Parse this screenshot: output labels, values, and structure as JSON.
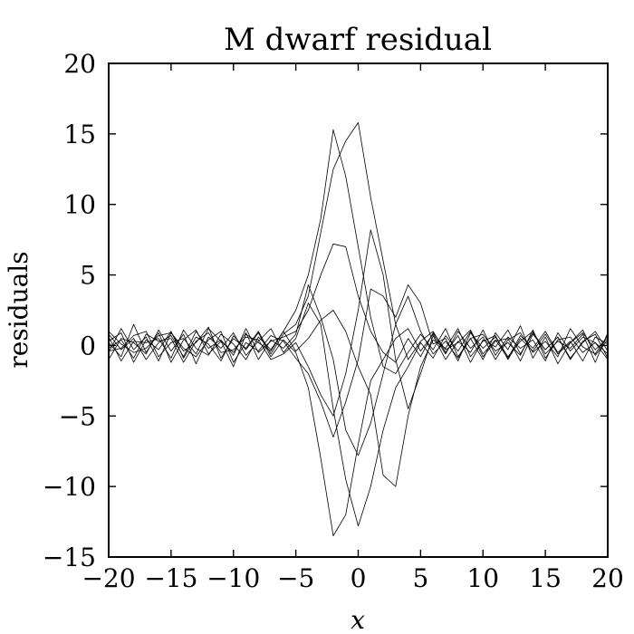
{
  "chart_data": {
    "type": "line",
    "title": "M dwarf residual",
    "xlabel": "x",
    "ylabel": "residuals",
    "xlim": [
      -20,
      20
    ],
    "ylim": [
      -15,
      20
    ],
    "xticks": [
      -20,
      -15,
      -10,
      -5,
      0,
      5,
      10,
      15,
      20
    ],
    "yticks": [
      -15,
      -10,
      -5,
      0,
      5,
      10,
      15,
      20
    ],
    "xtick_labels": [
      "−20",
      "−15",
      "−10",
      "−5",
      "0",
      "5",
      "10",
      "15",
      "20"
    ],
    "ytick_labels": [
      "−15",
      "−10",
      "−5",
      "0",
      "5",
      "10",
      "15",
      "20"
    ],
    "grid": false,
    "line_color": "#000000",
    "x": [
      -20,
      -19,
      -18,
      -17,
      -16,
      -15,
      -14,
      -13,
      -12,
      -11,
      -10,
      -9,
      -8,
      -7,
      -6,
      -5,
      -4,
      -3,
      -2,
      -1,
      0,
      1,
      2,
      3,
      4,
      5,
      6,
      7,
      8,
      9,
      10,
      11,
      12,
      13,
      14,
      15,
      16,
      17,
      18,
      19,
      20
    ],
    "series": [
      {
        "values": [
          0.2,
          -0.8,
          1.5,
          -0.5,
          0.9,
          -1.2,
          0.4,
          1.1,
          -0.6,
          0.3,
          -1.5,
          0.8,
          0.2,
          -0.4,
          1.0,
          2.5,
          5.0,
          9.0,
          15.3,
          12.0,
          7.0,
          2.0,
          -1.5,
          -2.0,
          -0.5,
          0.8,
          -0.3,
          1.2,
          -0.8,
          0.5,
          -1.0,
          0.9,
          -0.3,
          1.4,
          -0.9,
          0.6,
          -1.3,
          0.2,
          1.1,
          -0.7,
          0.4
        ]
      },
      {
        "values": [
          -0.5,
          1.2,
          -0.3,
          0.6,
          -1.1,
          0.9,
          -0.4,
          0.2,
          1.3,
          -0.9,
          0.5,
          -0.2,
          1.0,
          -0.6,
          0.8,
          1.5,
          3.5,
          8.0,
          12.5,
          14.5,
          15.8,
          10.5,
          6.0,
          1.5,
          -1.0,
          0.3,
          1.0,
          -0.5,
          0.7,
          -1.2,
          0.4,
          -0.1,
          1.1,
          -0.6,
          0.9,
          -0.3,
          0.6,
          -1.0,
          0.3,
          0.8,
          -0.9
        ]
      },
      {
        "values": [
          0.8,
          -0.3,
          0.5,
          -1.0,
          0.2,
          0.7,
          -0.8,
          1.0,
          -0.2,
          0.4,
          -0.7,
          1.2,
          -0.5,
          0.3,
          0.6,
          1.0,
          2.5,
          5.0,
          7.2,
          7.0,
          3.5,
          1.0,
          -0.5,
          -1.2,
          0.5,
          -0.8,
          0.9,
          -0.3,
          0.2,
          1.1,
          -0.6,
          0.4,
          -0.9,
          0.7,
          -0.2,
          1.0,
          -0.5,
          0.3,
          -1.1,
          0.6,
          0.1
        ]
      },
      {
        "values": [
          -1.0,
          0.5,
          0.2,
          -0.6,
          1.1,
          -0.4,
          0.8,
          -1.3,
          0.6,
          -0.2,
          0.9,
          -0.7,
          0.3,
          1.2,
          -0.5,
          0.5,
          3.0,
          1.5,
          -4.5,
          -9.5,
          -12.8,
          -10.0,
          -6.0,
          -3.0,
          -1.5,
          0.2,
          -0.9,
          0.7,
          -0.4,
          1.0,
          -0.8,
          0.3,
          0.5,
          -1.1,
          0.8,
          -0.3,
          0.6,
          -0.9,
          0.2,
          1.0,
          -0.4
        ]
      },
      {
        "values": [
          0.3,
          0.9,
          -1.2,
          0.4,
          -0.3,
          1.0,
          -0.9,
          0.6,
          0.1,
          -1.1,
          0.7,
          -0.3,
          0.9,
          -0.8,
          0.4,
          -0.5,
          -3.0,
          -8.0,
          -13.5,
          -12.0,
          -7.0,
          -2.5,
          -1.0,
          0.5,
          1.2,
          -0.4,
          0.8,
          -0.6,
          1.0,
          -0.2,
          0.6,
          -1.0,
          0.4,
          0.9,
          -0.5,
          0.3,
          -0.8,
          1.2,
          -0.1,
          -0.6,
          0.7
        ]
      },
      {
        "values": [
          -0.4,
          -0.2,
          0.7,
          1.0,
          -0.8,
          0.2,
          0.5,
          -0.6,
          1.2,
          0.3,
          -0.5,
          0.9,
          -1.0,
          0.4,
          -0.2,
          0.8,
          4.3,
          2.0,
          -1.0,
          -6.0,
          -7.8,
          -5.5,
          -2.0,
          1.5,
          3.5,
          1.0,
          -0.6,
          0.3,
          -0.9,
          0.5,
          0.8,
          -0.4,
          0.2,
          -0.7,
          1.1,
          -0.9,
          0.4,
          0.6,
          -0.5,
          0.2,
          -1.0
        ]
      },
      {
        "values": [
          0.6,
          -1.1,
          0.3,
          0.2,
          0.5,
          -0.9,
          1.1,
          -0.2,
          -0.7,
          0.8,
          0.1,
          -1.0,
          0.6,
          -0.3,
          1.0,
          -0.4,
          0.5,
          1.8,
          2.5,
          1.0,
          -1.5,
          -3.5,
          -9.2,
          -10.0,
          -5.0,
          -1.5,
          0.4,
          -0.2,
          1.2,
          -0.8,
          0.3,
          0.7,
          -1.0,
          0.5,
          -0.4,
          0.8,
          -0.6,
          0.2,
          0.9,
          -0.3,
          0.5
        ]
      },
      {
        "values": [
          -0.2,
          0.4,
          -0.9,
          0.8,
          0.3,
          0.5,
          -1.2,
          0.3,
          0.9,
          -0.5,
          -0.3,
          0.6,
          0.4,
          -1.0,
          -0.6,
          0.2,
          -1.5,
          -3.5,
          -5.0,
          -2.0,
          2.5,
          8.2,
          5.0,
          -1.0,
          -4.5,
          -2.0,
          0.7,
          -1.0,
          0.3,
          -0.5,
          1.1,
          -0.7,
          0.6,
          -0.2,
          0.4,
          -1.1,
          0.9,
          -0.4,
          0.6,
          0.2,
          -0.6
        ]
      },
      {
        "values": [
          1.0,
          0.1,
          -0.5,
          -0.2,
          0.7,
          0.9,
          -0.2,
          -0.8,
          0.4,
          1.0,
          -1.2,
          0.2,
          -0.4,
          0.7,
          0.3,
          -0.9,
          -2.0,
          -4.0,
          -6.5,
          -4.0,
          -1.0,
          4.0,
          3.5,
          2.0,
          4.3,
          3.0,
          0.1,
          0.5,
          -1.1,
          0.9,
          -0.2,
          0.6,
          -0.8,
          0.3,
          1.0,
          -0.6,
          0.3,
          -0.2,
          0.8,
          -1.2,
          0.9
        ]
      }
    ]
  }
}
